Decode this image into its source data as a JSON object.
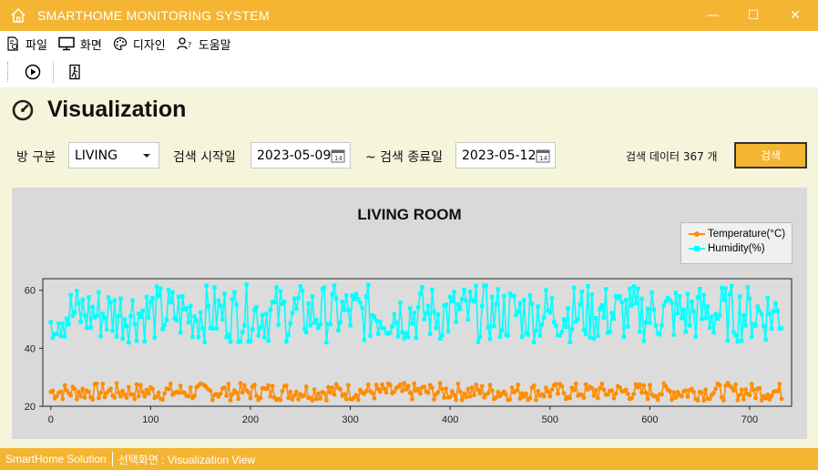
{
  "window": {
    "title": "SMARTHOME MONITORING SYSTEM",
    "minimize": "—",
    "maximize": "☐",
    "close": "✕"
  },
  "menu": [
    {
      "label": "파일",
      "icon": "file-settings-icon"
    },
    {
      "label": "화면",
      "icon": "monitor-icon"
    },
    {
      "label": "디자인",
      "icon": "palette-icon"
    },
    {
      "label": "도움말",
      "icon": "user-help-icon"
    }
  ],
  "toolbar": {
    "start_icon": "play-circle-icon",
    "exit_icon": "exit-door-icon"
  },
  "header": {
    "title": "Visualization",
    "icon": "gauge-icon"
  },
  "filters": {
    "room_label": "방 구분",
    "room_value": "LIVING",
    "start_label": "검색 시작일",
    "start_value": "2023-05-09",
    "end_label": "~ 검색 종료일",
    "end_value": "2023-05-12",
    "count_text": "검색 데이터 367 개",
    "search_button": "검색"
  },
  "chart_data": {
    "type": "line",
    "title": "LIVING ROOM",
    "x_ticks": [
      "0",
      "100",
      "200",
      "300",
      "400",
      "500",
      "600",
      "700"
    ],
    "y_ticks": [
      "20",
      "40",
      "60"
    ],
    "xlim": [
      -8,
      742
    ],
    "ylim": [
      20,
      64
    ],
    "grid": false,
    "legend_position": "top-right",
    "series": [
      {
        "name": "Temperature(°C)",
        "color": "#ff8c00",
        "marker": "circle",
        "base": 25,
        "amplitude": 3,
        "min": 20,
        "max": 30
      },
      {
        "name": "Humidity(%)",
        "color": "#00ffff",
        "marker": "square",
        "base": 52,
        "amplitude": 10,
        "min": 41,
        "max": 63
      }
    ],
    "point_count": 367,
    "x_step": 2
  },
  "statusbar": {
    "left": "SmartHome Solution",
    "right": "선택화면 : Visualization View"
  }
}
